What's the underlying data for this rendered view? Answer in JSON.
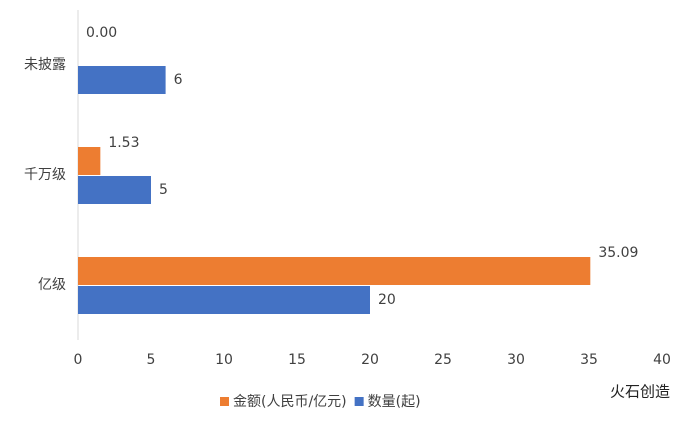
{
  "chart_data": {
    "type": "bar",
    "orientation": "horizontal",
    "categories": [
      "未披露",
      "千万级",
      "亿级"
    ],
    "series": [
      {
        "name": "金额(人民币/亿元)",
        "color": "#ed7d31",
        "values": [
          0,
          1.53,
          35.09
        ],
        "value_labels": [
          "0.00",
          "1.53",
          "35.09"
        ]
      },
      {
        "name": "数量(起)",
        "color": "#4472c4",
        "values": [
          6,
          5,
          20
        ]
      }
    ],
    "xlim": [
      0,
      40
    ],
    "xticks": [
      0,
      5,
      10,
      15,
      20,
      25,
      30,
      35,
      40
    ],
    "legend": "bottom",
    "watermark": "火石创造"
  }
}
